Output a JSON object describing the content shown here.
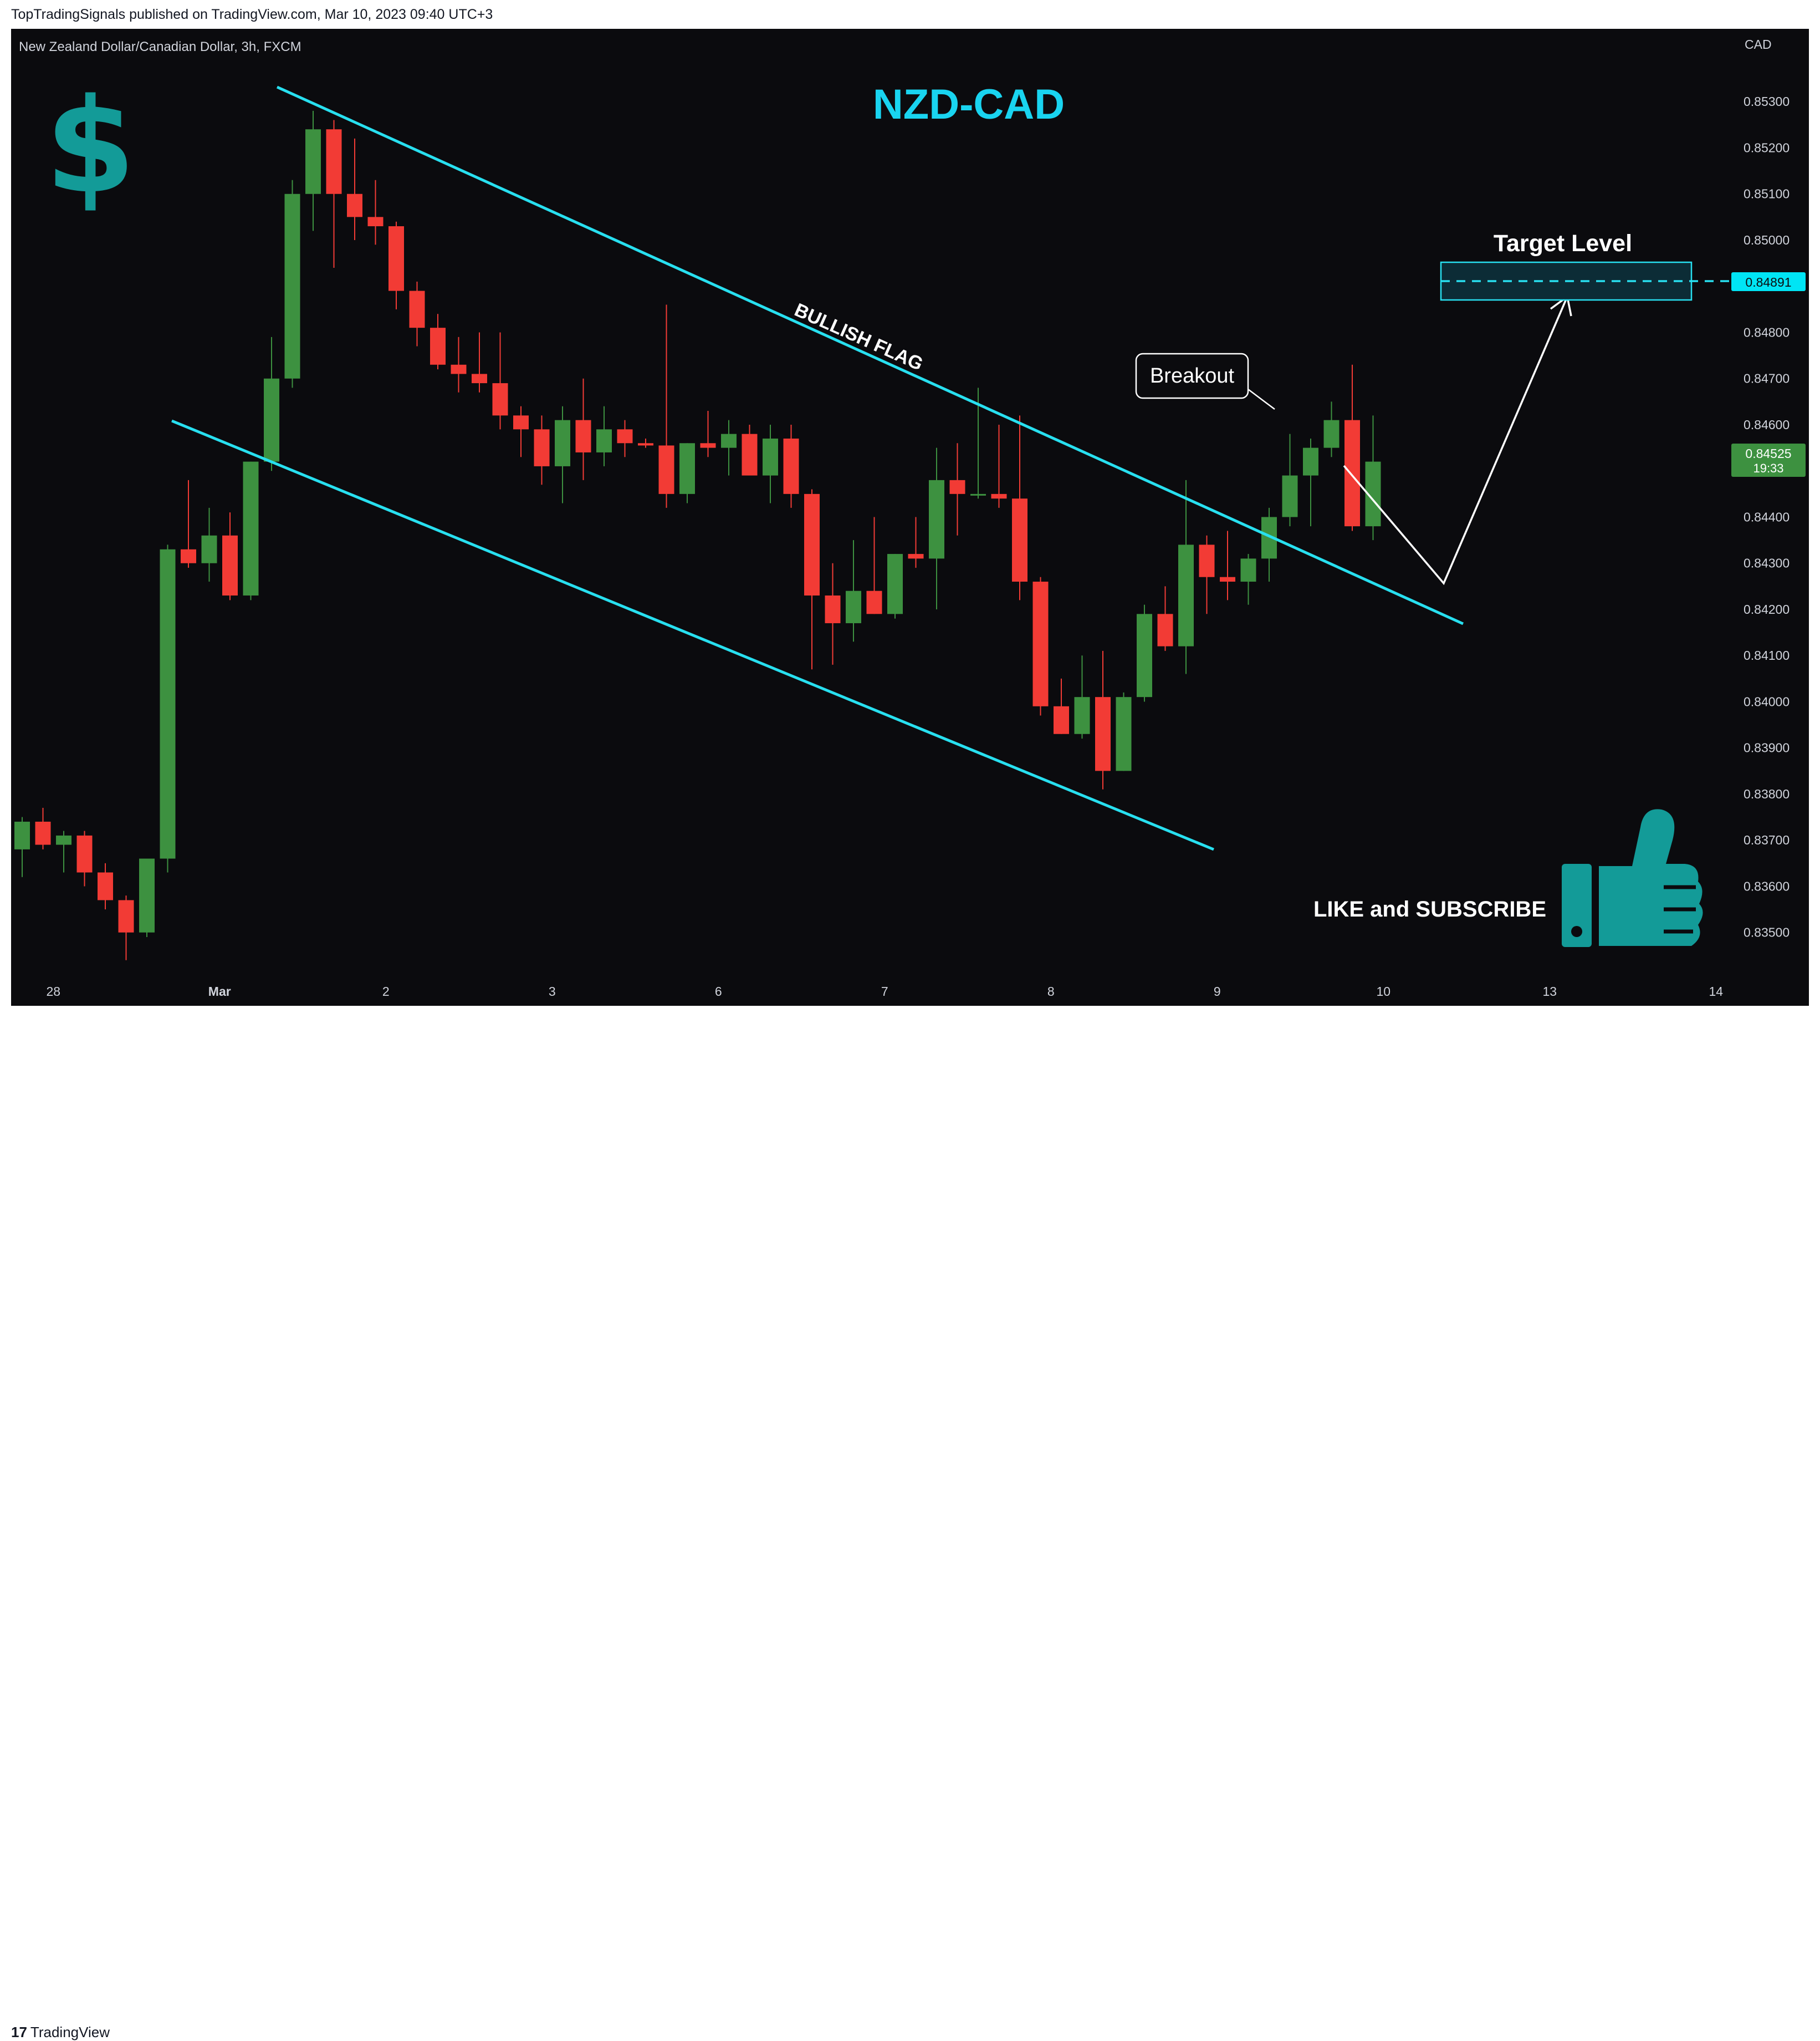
{
  "header": {
    "published_text": "TopTradingSignals published on TradingView.com, Mar 10, 2023 09:40 UTC+3"
  },
  "chart_symbol": "New Zealand Dollar/Canadian Dollar, 3h, FXCM",
  "currency_label": "CAD",
  "footer": {
    "brand": "TradingView"
  },
  "colors": {
    "up": "#3d9140",
    "down": "#f23b35",
    "line": "#28e0f0",
    "title": "#19d4f0",
    "icon": "#139b98"
  },
  "icons": {
    "dollar": "dollar-icon",
    "thumb": "thumbs-up-icon"
  },
  "price_labels": {
    "target": "0.84891",
    "current": "0.84525",
    "countdown": "19:33"
  },
  "chart_data": {
    "type": "candlestick",
    "title": "NZD-CAD",
    "ylim": [
      0.8343,
      0.854
    ],
    "y_ticks": [
      "0.85300",
      "0.85200",
      "0.85100",
      "0.85000",
      "0.84900",
      "0.84800",
      "0.84700",
      "0.84600",
      "0.84500",
      "0.84400",
      "0.84300",
      "0.84200",
      "0.84100",
      "0.84000",
      "0.83900",
      "0.83800",
      "0.83700",
      "0.83600",
      "0.83500"
    ],
    "x_ticks": [
      {
        "label": "28",
        "i": 1.5
      },
      {
        "label": "Mar",
        "i": 9.5
      },
      {
        "label": "2",
        "i": 17.5
      },
      {
        "label": "3",
        "i": 25.5
      },
      {
        "label": "6",
        "i": 33.5
      },
      {
        "label": "7",
        "i": 41.5
      },
      {
        "label": "8",
        "i": 49.5
      },
      {
        "label": "9",
        "i": 57.5
      },
      {
        "label": "10",
        "i": 65.5
      },
      {
        "label": "13",
        "i": 73.5
      },
      {
        "label": "14",
        "i": 81.5
      }
    ],
    "candles": [
      [
        0.8368,
        0.8375,
        0.8362,
        0.8374
      ],
      [
        0.8374,
        0.8377,
        0.8368,
        0.8369
      ],
      [
        0.8369,
        0.8372,
        0.8363,
        0.8371
      ],
      [
        0.8371,
        0.8372,
        0.836,
        0.8363
      ],
      [
        0.8363,
        0.8365,
        0.8355,
        0.8357
      ],
      [
        0.8357,
        0.8358,
        0.8344,
        0.835
      ],
      [
        0.835,
        0.8365,
        0.8349,
        0.8366
      ],
      [
        0.8366,
        0.8434,
        0.8363,
        0.8433
      ],
      [
        0.8433,
        0.8448,
        0.8429,
        0.843
      ],
      [
        0.843,
        0.8442,
        0.8426,
        0.8436
      ],
      [
        0.8436,
        0.8441,
        0.8422,
        0.8423
      ],
      [
        0.8423,
        0.8452,
        0.8422,
        0.8452
      ],
      [
        0.8452,
        0.8479,
        0.845,
        0.847
      ],
      [
        0.847,
        0.8513,
        0.8468,
        0.851
      ],
      [
        0.851,
        0.8528,
        0.8502,
        0.8524
      ],
      [
        0.8524,
        0.8526,
        0.8494,
        0.851
      ],
      [
        0.851,
        0.8522,
        0.85,
        0.8505
      ],
      [
        0.8505,
        0.8513,
        0.8499,
        0.8503
      ],
      [
        0.8503,
        0.8504,
        0.8485,
        0.8489
      ],
      [
        0.8489,
        0.8491,
        0.8477,
        0.8481
      ],
      [
        0.8481,
        0.8484,
        0.8472,
        0.8473
      ],
      [
        0.8473,
        0.8479,
        0.8467,
        0.8471
      ],
      [
        0.8471,
        0.848,
        0.8467,
        0.8469
      ],
      [
        0.8469,
        0.848,
        0.8459,
        0.8462
      ],
      [
        0.8462,
        0.8464,
        0.8453,
        0.8459
      ],
      [
        0.8459,
        0.8462,
        0.8447,
        0.8451
      ],
      [
        0.8451,
        0.8464,
        0.8443,
        0.8461
      ],
      [
        0.8461,
        0.847,
        0.8448,
        0.8454
      ],
      [
        0.8454,
        0.8464,
        0.8451,
        0.8459
      ],
      [
        0.8459,
        0.8461,
        0.8453,
        0.8456
      ],
      [
        0.8456,
        0.8457,
        0.8455,
        0.84555
      ],
      [
        0.84555,
        0.8486,
        0.8442,
        0.8445
      ],
      [
        0.8445,
        0.8456,
        0.8443,
        0.8456
      ],
      [
        0.8456,
        0.8463,
        0.8453,
        0.8455
      ],
      [
        0.8455,
        0.8461,
        0.8449,
        0.8458
      ],
      [
        0.8458,
        0.846,
        0.845,
        0.8449
      ],
      [
        0.8449,
        0.846,
        0.8443,
        0.8457
      ],
      [
        0.8457,
        0.846,
        0.8442,
        0.8445
      ],
      [
        0.8445,
        0.8446,
        0.8407,
        0.8423
      ],
      [
        0.8423,
        0.843,
        0.8408,
        0.8417
      ],
      [
        0.8417,
        0.8435,
        0.8413,
        0.8424
      ],
      [
        0.8424,
        0.844,
        0.8419,
        0.8419
      ],
      [
        0.8419,
        0.8432,
        0.8418,
        0.8432
      ],
      [
        0.8432,
        0.844,
        0.8429,
        0.8431
      ],
      [
        0.8431,
        0.8455,
        0.842,
        0.8448
      ],
      [
        0.8448,
        0.8456,
        0.8436,
        0.8445
      ],
      [
        0.8445,
        0.8468,
        0.8444,
        0.8445
      ],
      [
        0.8445,
        0.846,
        0.8442,
        0.8444
      ],
      [
        0.8444,
        0.8462,
        0.8422,
        0.8426
      ],
      [
        0.8426,
        0.8427,
        0.8397,
        0.8399
      ],
      [
        0.8399,
        0.8405,
        0.8393,
        0.8393
      ],
      [
        0.8393,
        0.841,
        0.8392,
        0.8401
      ],
      [
        0.8401,
        0.8411,
        0.8381,
        0.8385
      ],
      [
        0.8385,
        0.8402,
        0.8385,
        0.8401
      ],
      [
        0.8401,
        0.8421,
        0.84,
        0.8419
      ],
      [
        0.8419,
        0.8425,
        0.8411,
        0.8412
      ],
      [
        0.8412,
        0.8448,
        0.8406,
        0.8434
      ],
      [
        0.8434,
        0.8436,
        0.8419,
        0.8427
      ],
      [
        0.8427,
        0.8437,
        0.8422,
        0.8426
      ],
      [
        0.8426,
        0.8432,
        0.8421,
        0.8431
      ],
      [
        0.8431,
        0.8442,
        0.8426,
        0.844
      ],
      [
        0.844,
        0.8458,
        0.8438,
        0.8449
      ],
      [
        0.8449,
        0.8457,
        0.8438,
        0.8455
      ],
      [
        0.8455,
        0.8465,
        0.8453,
        0.8461
      ],
      [
        0.8461,
        0.8473,
        0.8437,
        0.8438
      ],
      [
        0.8438,
        0.8462,
        0.8435,
        0.8452
      ]
    ]
  },
  "annotations": {
    "flag_label": "BULLISH FLAG",
    "breakout_label": "Breakout",
    "target_label": "Target Level",
    "cta_label": "LIKE and SUBSCRIBE"
  }
}
